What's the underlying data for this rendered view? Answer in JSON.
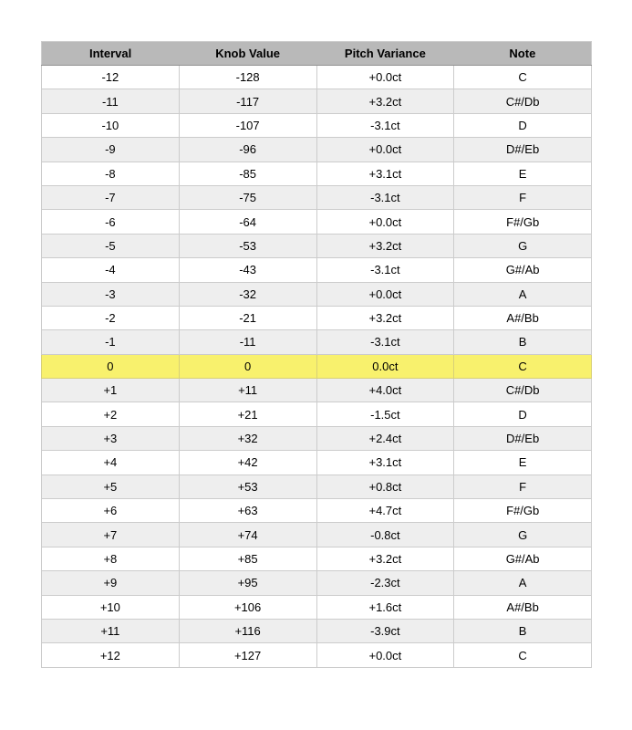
{
  "colors": {
    "header_bg": "#b9b9b9",
    "header_border": "#919191",
    "row_bg": "#ffffff",
    "row_alt_bg": "#eeeeee",
    "cell_border": "#cccccc",
    "highlight_bg": "#f8f16d",
    "text": "#000000"
  },
  "chart_data": {
    "type": "table",
    "columns": [
      "Interval",
      "Knob Value",
      "Pitch Variance",
      "Note"
    ],
    "highlighted_row_index": 12,
    "rows": [
      {
        "interval": "-12",
        "knob_value": "-128",
        "pitch_variance": "+0.0ct",
        "note": "C"
      },
      {
        "interval": "-11",
        "knob_value": "-117",
        "pitch_variance": "+3.2ct",
        "note": "C#/Db"
      },
      {
        "interval": "-10",
        "knob_value": "-107",
        "pitch_variance": "-3.1ct",
        "note": "D"
      },
      {
        "interval": "-9",
        "knob_value": "-96",
        "pitch_variance": "+0.0ct",
        "note": "D#/Eb"
      },
      {
        "interval": "-8",
        "knob_value": "-85",
        "pitch_variance": "+3.1ct",
        "note": "E"
      },
      {
        "interval": "-7",
        "knob_value": "-75",
        "pitch_variance": "-3.1ct",
        "note": "F"
      },
      {
        "interval": "-6",
        "knob_value": "-64",
        "pitch_variance": "+0.0ct",
        "note": "F#/Gb"
      },
      {
        "interval": "-5",
        "knob_value": "-53",
        "pitch_variance": "+3.2ct",
        "note": "G"
      },
      {
        "interval": "-4",
        "knob_value": "-43",
        "pitch_variance": "-3.1ct",
        "note": "G#/Ab"
      },
      {
        "interval": "-3",
        "knob_value": "-32",
        "pitch_variance": "+0.0ct",
        "note": "A"
      },
      {
        "interval": "-2",
        "knob_value": "-21",
        "pitch_variance": "+3.2ct",
        "note": "A#/Bb"
      },
      {
        "interval": "-1",
        "knob_value": "-11",
        "pitch_variance": "-3.1ct",
        "note": "B"
      },
      {
        "interval": "0",
        "knob_value": "0",
        "pitch_variance": "0.0ct",
        "note": "C"
      },
      {
        "interval": "+1",
        "knob_value": "+11",
        "pitch_variance": "+4.0ct",
        "note": "C#/Db"
      },
      {
        "interval": "+2",
        "knob_value": "+21",
        "pitch_variance": "-1.5ct",
        "note": "D"
      },
      {
        "interval": "+3",
        "knob_value": "+32",
        "pitch_variance": "+2.4ct",
        "note": "D#/Eb"
      },
      {
        "interval": "+4",
        "knob_value": "+42",
        "pitch_variance": "+3.1ct",
        "note": "E"
      },
      {
        "interval": "+5",
        "knob_value": "+53",
        "pitch_variance": "+0.8ct",
        "note": "F"
      },
      {
        "interval": "+6",
        "knob_value": "+63",
        "pitch_variance": "+4.7ct",
        "note": "F#/Gb"
      },
      {
        "interval": "+7",
        "knob_value": "+74",
        "pitch_variance": "-0.8ct",
        "note": "G"
      },
      {
        "interval": "+8",
        "knob_value": "+85",
        "pitch_variance": "+3.2ct",
        "note": "G#/Ab"
      },
      {
        "interval": "+9",
        "knob_value": "+95",
        "pitch_variance": "-2.3ct",
        "note": "A"
      },
      {
        "interval": "+10",
        "knob_value": "+106",
        "pitch_variance": "+1.6ct",
        "note": "A#/Bb"
      },
      {
        "interval": "+11",
        "knob_value": "+116",
        "pitch_variance": "-3.9ct",
        "note": "B"
      },
      {
        "interval": "+12",
        "knob_value": "+127",
        "pitch_variance": "+0.0ct",
        "note": "C"
      }
    ]
  }
}
